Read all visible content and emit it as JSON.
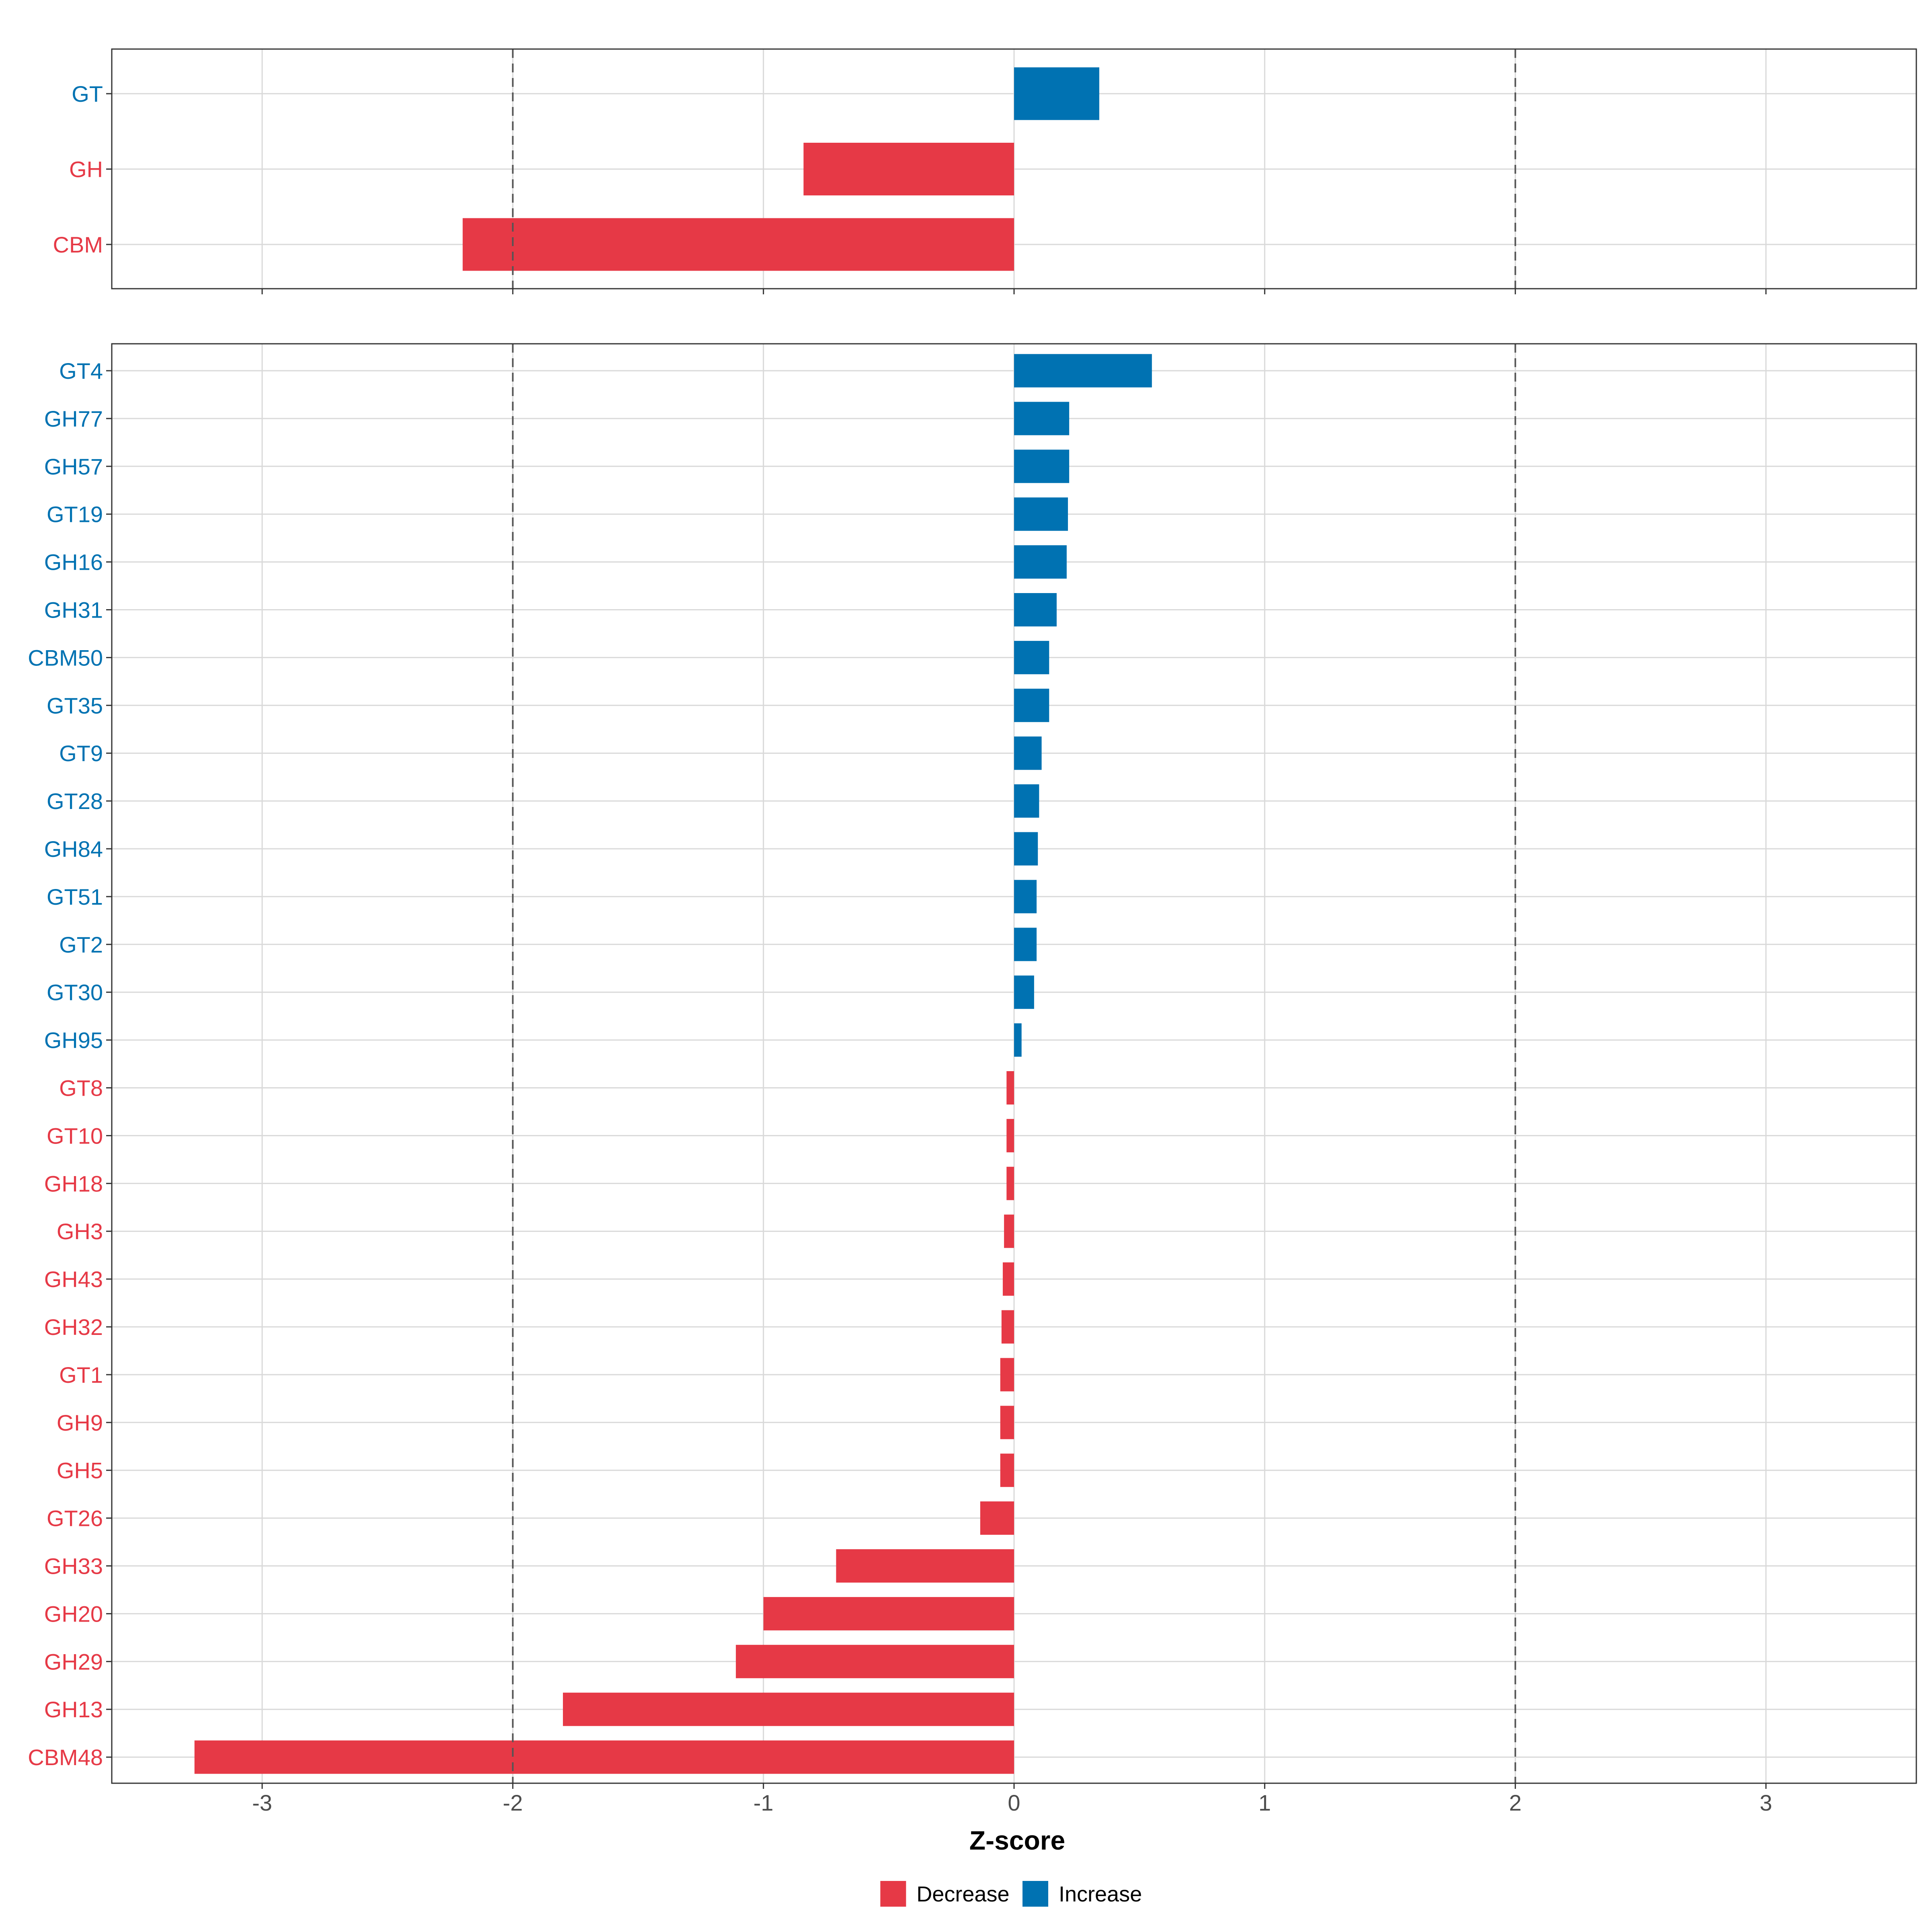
{
  "chart_data": [
    {
      "type": "bar",
      "orientation": "horizontal",
      "panel": "top",
      "categories": [
        "GT",
        "GH",
        "CBM"
      ],
      "values": [
        0.34,
        -0.84,
        -2.2
      ],
      "xlim": [
        -3.6,
        3.6
      ],
      "xticks": [
        -3,
        -2,
        -1,
        0,
        1,
        2,
        3
      ],
      "reference_lines": [
        -2,
        2
      ],
      "grid": true
    },
    {
      "type": "bar",
      "orientation": "horizontal",
      "panel": "bottom",
      "categories": [
        "GT4",
        "GH77",
        "GH57",
        "GT19",
        "GH16",
        "GH31",
        "CBM50",
        "GT35",
        "GT9",
        "GT28",
        "GH84",
        "GT51",
        "GT2",
        "GT30",
        "GH95",
        "GT8",
        "GT10",
        "GH18",
        "GH3",
        "GH43",
        "GH32",
        "GT1",
        "GH9",
        "GH5",
        "GT26",
        "GH33",
        "GH20",
        "GH29",
        "GH13",
        "CBM48"
      ],
      "values": [
        0.55,
        0.22,
        0.22,
        0.215,
        0.21,
        0.17,
        0.14,
        0.14,
        0.11,
        0.1,
        0.095,
        0.09,
        0.09,
        0.08,
        0.03,
        -0.03,
        -0.03,
        -0.03,
        -0.04,
        -0.045,
        -0.05,
        -0.055,
        -0.055,
        -0.055,
        -0.135,
        -0.71,
        -1.0,
        -1.11,
        -1.8,
        -3.27
      ],
      "xlim": [
        -3.6,
        3.6
      ],
      "xticks": [
        -3,
        -2,
        -1,
        0,
        1,
        2,
        3
      ],
      "xtick_labels": [
        "-3",
        "-2",
        "-1",
        "0",
        "1",
        "2",
        "3"
      ],
      "reference_lines": [
        -2,
        2
      ],
      "grid": true,
      "xlabel": "Z-score"
    }
  ],
  "legend": {
    "position": "bottom",
    "items": [
      {
        "label": "Decrease",
        "color": "#E63946"
      },
      {
        "label": "Increase",
        "color": "#0072B2"
      }
    ]
  },
  "colors": {
    "increase": "#0072B2",
    "decrease": "#E63946",
    "grid": "#D9D9D9",
    "axis": "#333333",
    "reference_line": "#555555"
  }
}
